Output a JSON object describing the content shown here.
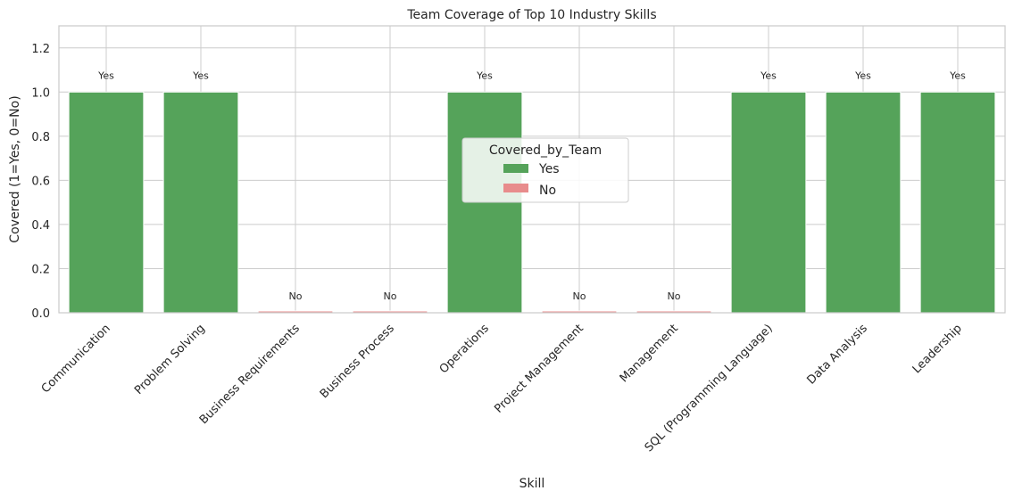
{
  "chart_data": {
    "type": "bar",
    "title": "Team Coverage of Top 10 Industry Skills",
    "xlabel": "Skill",
    "ylabel": "Covered (1=Yes, 0=No)",
    "ylim": [
      0,
      1.3
    ],
    "yticks": [
      "0.0",
      "0.2",
      "0.4",
      "0.6",
      "0.8",
      "1.0",
      "1.2"
    ],
    "grid": true,
    "categories": [
      "Communication",
      "Problem Solving",
      "Business Requirements",
      "Business Process",
      "Operations",
      "Project Management",
      "Management",
      "SQL (Programming Language)",
      "Data Analysis",
      "Leadership"
    ],
    "values": [
      1,
      1,
      0,
      0,
      1,
      0,
      0,
      1,
      1,
      1
    ],
    "covered": [
      "Yes",
      "Yes",
      "No",
      "No",
      "Yes",
      "No",
      "No",
      "Yes",
      "Yes",
      "Yes"
    ],
    "legend": {
      "title": "Covered_by_Team",
      "placement": "center",
      "entries": [
        {
          "label": "Yes",
          "color": "#55a35a"
        },
        {
          "label": "No",
          "color": "#e88c8c"
        }
      ]
    },
    "colors": {
      "Yes": "#55a35a",
      "No": "#e88c8c"
    }
  }
}
